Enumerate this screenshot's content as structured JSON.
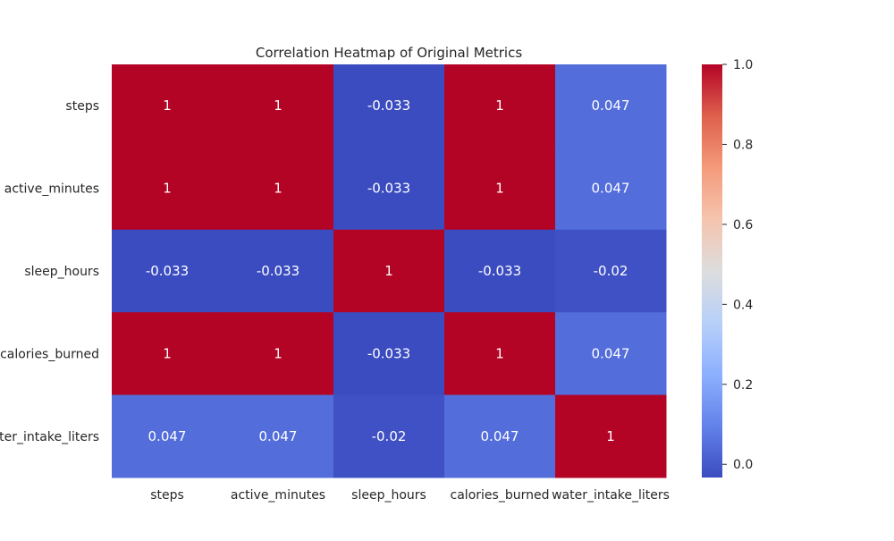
{
  "chart_data": {
    "type": "heatmap",
    "title": "Correlation Heatmap of Original Metrics",
    "rows": [
      "steps",
      "active_minutes",
      "sleep_hours",
      "calories_burned",
      "water_intake_liters"
    ],
    "columns": [
      "steps",
      "active_minutes",
      "sleep_hours",
      "calories_burned",
      "water_intake_liters"
    ],
    "values": [
      [
        1,
        1,
        -0.033,
        1,
        0.047
      ],
      [
        1,
        1,
        -0.033,
        1,
        0.047
      ],
      [
        -0.033,
        -0.033,
        1,
        -0.033,
        -0.02
      ],
      [
        1,
        1,
        -0.033,
        1,
        0.047
      ],
      [
        0.047,
        0.047,
        -0.02,
        0.047,
        1
      ]
    ],
    "cell_labels": [
      [
        "1",
        "1",
        "-0.033",
        "1",
        "0.047"
      ],
      [
        "1",
        "1",
        "-0.033",
        "1",
        "0.047"
      ],
      [
        "-0.033",
        "-0.033",
        "1",
        "-0.033",
        "-0.02"
      ],
      [
        "1",
        "1",
        "-0.033",
        "1",
        "0.047"
      ],
      [
        "0.047",
        "0.047",
        "-0.02",
        "0.047",
        "1"
      ]
    ],
    "colormap": "coolwarm",
    "vmin": -0.033,
    "vmax": 1.0,
    "colorbar_ticks": [
      "1.0",
      "0.8",
      "0.6",
      "0.4",
      "0.2",
      "0.0"
    ],
    "colorbar_tick_values": [
      1.0,
      0.8,
      0.6,
      0.4,
      0.2,
      0.0
    ],
    "legend_placement": "right",
    "grid": false
  }
}
